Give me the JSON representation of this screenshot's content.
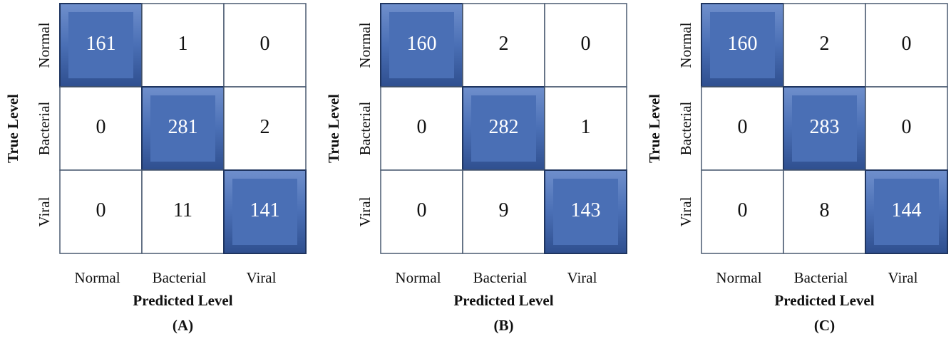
{
  "chart_data": [
    {
      "type": "heatmap",
      "x_label": "Predicted Level",
      "y_label": "True Level",
      "caption": "(A)",
      "x_categories": [
        "Normal",
        "Bacterial",
        "Viral"
      ],
      "y_categories": [
        "Normal",
        "Bacterial",
        "Viral"
      ],
      "values": [
        [
          161,
          1,
          0
        ],
        [
          0,
          281,
          2
        ],
        [
          0,
          11,
          141
        ]
      ],
      "highlight_color": "#4a6fb5",
      "color": "#ffffff"
    },
    {
      "type": "heatmap",
      "x_label": "Predicted Level",
      "y_label": "True Level",
      "caption": "(B)",
      "x_categories": [
        "Normal",
        "Bacterial",
        "Viral"
      ],
      "y_categories": [
        "Normal",
        "Bacterial",
        "Viral"
      ],
      "values": [
        [
          160,
          2,
          0
        ],
        [
          0,
          282,
          1
        ],
        [
          0,
          9,
          143
        ]
      ],
      "highlight_color": "#4a6fb5",
      "color": "#ffffff"
    },
    {
      "type": "heatmap",
      "x_label": "Predicted Level",
      "y_label": "True Level",
      "caption": "(C)",
      "x_categories": [
        "Normal",
        "Bacterial",
        "Viral"
      ],
      "y_categories": [
        "Normal",
        "Bacterial",
        "Viral"
      ],
      "values": [
        [
          160,
          2,
          0
        ],
        [
          0,
          283,
          0
        ],
        [
          0,
          8,
          144
        ]
      ],
      "highlight_color": "#4a6fb5",
      "color": "#ffffff"
    }
  ]
}
